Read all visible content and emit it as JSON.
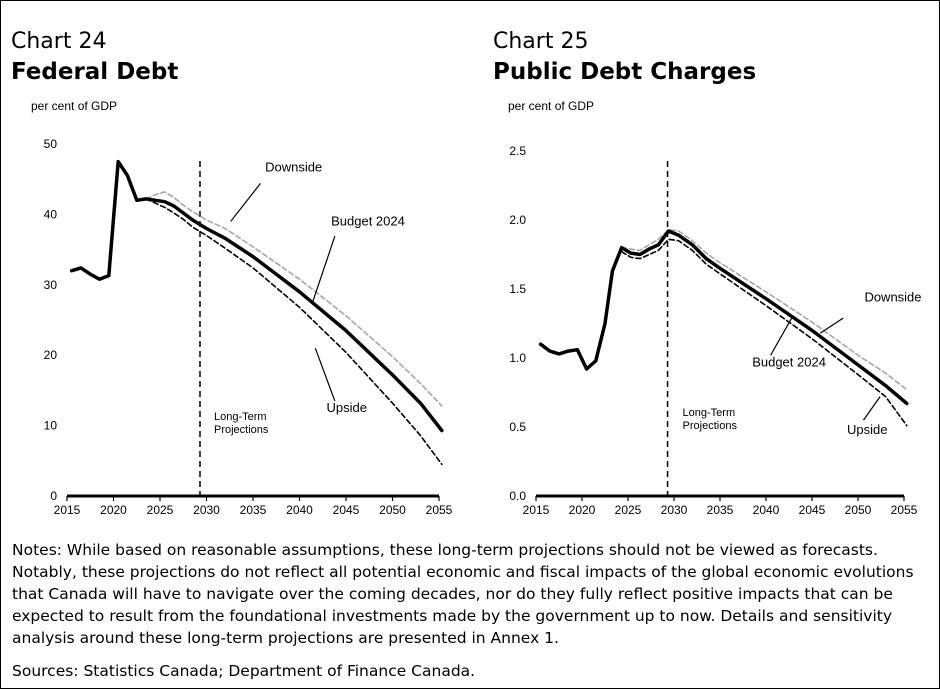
{
  "chart_data": [
    {
      "type": "line",
      "chart_number": "Chart 24",
      "title": "Federal Debt",
      "ylabel": "per cent of GDP",
      "xlim": [
        2015,
        2055
      ],
      "ylim": [
        0,
        50
      ],
      "xticks": [
        "2015",
        "2020",
        "2025",
        "2030",
        "2035",
        "2040",
        "2045",
        "2050",
        "2055"
      ],
      "yticks": [
        "0",
        "10",
        "20",
        "30",
        "40",
        "50"
      ],
      "vline": {
        "x": 2029.3,
        "label_lines": [
          "Long-Term",
          "Projections"
        ]
      },
      "series": [
        {
          "name": "Budget 2024",
          "color": "#000000",
          "style": "solid-thick",
          "points": [
            [
              2015.5,
              32.0
            ],
            [
              2016.5,
              32.4
            ],
            [
              2017.5,
              31.5
            ],
            [
              2018.5,
              30.8
            ],
            [
              2019.5,
              31.3
            ],
            [
              2020.5,
              47.5
            ],
            [
              2021.5,
              45.5
            ],
            [
              2022.5,
              42.0
            ],
            [
              2023.5,
              42.2
            ],
            [
              2024.5,
              42.0
            ],
            [
              2025.5,
              41.8
            ],
            [
              2026.5,
              41.2
            ],
            [
              2027.5,
              40.2
            ],
            [
              2028.5,
              39.2
            ],
            [
              2030,
              38.0
            ],
            [
              2032,
              36.6
            ],
            [
              2035,
              34.0
            ],
            [
              2040,
              29.0
            ],
            [
              2045,
              23.5
            ],
            [
              2050,
              17.2
            ],
            [
              2053,
              13.2
            ],
            [
              2055.3,
              9.3
            ]
          ]
        },
        {
          "name": "Downside",
          "color": "#a6a6a6",
          "style": "dashed",
          "points": [
            [
              2023.5,
              42.2
            ],
            [
              2024.5,
              42.8
            ],
            [
              2025.5,
              43.2
            ],
            [
              2026.5,
              42.4
            ],
            [
              2027.5,
              41.3
            ],
            [
              2028.5,
              40.4
            ],
            [
              2030,
              39.2
            ],
            [
              2032,
              38.0
            ],
            [
              2035,
              35.4
            ],
            [
              2040,
              30.8
            ],
            [
              2045,
              25.6
            ],
            [
              2050,
              19.8
            ],
            [
              2053,
              16.0
            ],
            [
              2055.3,
              12.8
            ]
          ]
        },
        {
          "name": "Upside",
          "color": "#000000",
          "style": "dashed",
          "points": [
            [
              2023.5,
              42.2
            ],
            [
              2024.5,
              41.6
            ],
            [
              2025.5,
              41.0
            ],
            [
              2026.5,
              40.2
            ],
            [
              2027.5,
              39.3
            ],
            [
              2028.5,
              38.2
            ],
            [
              2030,
              37.0
            ],
            [
              2032,
              35.2
            ],
            [
              2035,
              32.4
            ],
            [
              2040,
              26.8
            ],
            [
              2045,
              20.4
            ],
            [
              2050,
              13.2
            ],
            [
              2053,
              8.6
            ],
            [
              2055.3,
              4.5
            ]
          ]
        }
      ],
      "annotations": [
        {
          "text": "Downside",
          "x": 2036.3,
          "y": 46.1,
          "from": [
            2035.8,
            44.4
          ],
          "to": [
            2032.6,
            39.0
          ]
        },
        {
          "text": "Budget 2024",
          "x": 2043.4,
          "y": 38.4,
          "from": [
            2043.8,
            36.9
          ],
          "to": [
            2041.4,
            27.5
          ]
        },
        {
          "text": "Upside",
          "x": 2042.9,
          "y": 11.9,
          "from": [
            2043.8,
            13.5
          ],
          "to": [
            2041.7,
            21.0
          ]
        }
      ]
    },
    {
      "type": "line",
      "chart_number": "Chart 25",
      "title": "Public Debt Charges",
      "ylabel": "per cent of  GDP",
      "xlim": [
        2015,
        2055
      ],
      "ylim": [
        0,
        2.5
      ],
      "xticks": [
        "2015",
        "2020",
        "2025",
        "2030",
        "2035",
        "2040",
        "2045",
        "2050",
        "2055"
      ],
      "yticks": [
        "0.0",
        "0.5",
        "1.0",
        "1.5",
        "2.0",
        "2.5"
      ],
      "vline": {
        "x": 2029.3,
        "label_lines": [
          "Long-Term",
          "Projections"
        ]
      },
      "series": [
        {
          "name": "Budget 2024",
          "color": "#000000",
          "style": "solid-thick",
          "points": [
            [
              2015.5,
              1.1
            ],
            [
              2016.5,
              1.05
            ],
            [
              2017.5,
              1.03
            ],
            [
              2018.5,
              1.05
            ],
            [
              2019.5,
              1.06
            ],
            [
              2020.5,
              0.92
            ],
            [
              2021.5,
              0.98
            ],
            [
              2022.5,
              1.25
            ],
            [
              2023.3,
              1.63
            ],
            [
              2024.3,
              1.8
            ],
            [
              2025.3,
              1.76
            ],
            [
              2026.3,
              1.75
            ],
            [
              2027.3,
              1.79
            ],
            [
              2028.3,
              1.82
            ],
            [
              2029.4,
              1.92
            ],
            [
              2030.5,
              1.89
            ],
            [
              2032,
              1.82
            ],
            [
              2033.5,
              1.72
            ],
            [
              2035,
              1.65
            ],
            [
              2040,
              1.43
            ],
            [
              2045,
              1.2
            ],
            [
              2050,
              0.95
            ],
            [
              2053,
              0.8
            ],
            [
              2055.3,
              0.67
            ]
          ]
        },
        {
          "name": "Downside",
          "color": "#a6a6a6",
          "style": "dashed",
          "points": [
            [
              2024.3,
              1.8
            ],
            [
              2025.3,
              1.79
            ],
            [
              2026.3,
              1.78
            ],
            [
              2027.3,
              1.82
            ],
            [
              2028.3,
              1.86
            ],
            [
              2029.4,
              1.93
            ],
            [
              2030.5,
              1.92
            ],
            [
              2032,
              1.85
            ],
            [
              2033.5,
              1.76
            ],
            [
              2035,
              1.69
            ],
            [
              2040,
              1.48
            ],
            [
              2045,
              1.26
            ],
            [
              2050,
              1.02
            ],
            [
              2053,
              0.89
            ],
            [
              2055.3,
              0.77
            ]
          ]
        },
        {
          "name": "Upside",
          "color": "#000000",
          "style": "dashed",
          "points": [
            [
              2024.3,
              1.77
            ],
            [
              2025.3,
              1.73
            ],
            [
              2026.3,
              1.72
            ],
            [
              2027.3,
              1.75
            ],
            [
              2028.3,
              1.78
            ],
            [
              2029.4,
              1.86
            ],
            [
              2030.5,
              1.85
            ],
            [
              2032,
              1.78
            ],
            [
              2033.5,
              1.68
            ],
            [
              2035,
              1.61
            ],
            [
              2040,
              1.38
            ],
            [
              2045,
              1.14
            ],
            [
              2050,
              0.88
            ],
            [
              2053,
              0.72
            ],
            [
              2055.3,
              0.51
            ]
          ]
        }
      ],
      "annotations": [
        {
          "text": "Downside",
          "x": 2050.7,
          "y": 1.41,
          "from": [
            2048.4,
            1.29
          ],
          "to": [
            2045.9,
            1.18
          ]
        },
        {
          "text": "Budget 2024",
          "x": 2038.5,
          "y": 0.94,
          "from": [
            2040.5,
            1.02
          ],
          "to": [
            2042.8,
            1.29
          ]
        },
        {
          "text": "Upside",
          "x": 2048.8,
          "y": 0.45,
          "from": [
            2050.6,
            0.55
          ],
          "to": [
            2052.4,
            0.72
          ]
        }
      ]
    }
  ],
  "notes": "Notes: While based on reasonable assumptions, these long-term projections should not be viewed as forecasts. Notably, these projections do not reflect all potential economic and fiscal impacts of the global economic evolutions that Canada will have to navigate over the coming decades, nor do they fully reflect positive impacts that can be expected to result from the foundational investments made by the government up to now. Details and sensitivity analysis around these long-term projections are presented in Annex 1.",
  "sources": "Sources: Statistics Canada; Department of Finance Canada."
}
